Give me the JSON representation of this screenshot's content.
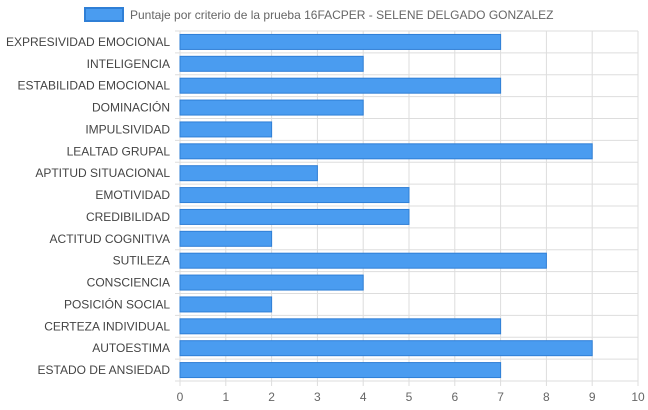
{
  "chart_data": {
    "type": "bar",
    "orientation": "horizontal",
    "legend": {
      "label": "Puntaje por criterio de la prueba 16FACPER - SELENE DELGADO GONZALEZ",
      "placement": "top-center"
    },
    "categories": [
      "EXPRESIVIDAD EMOCIONAL",
      "INTELIGENCIA",
      "ESTABILIDAD EMOCIONAL",
      "DOMINACIÓN",
      "IMPULSIVIDAD",
      "LEALTAD GRUPAL",
      "APTITUD SITUACIONAL",
      "EMOTIVIDAD",
      "CREDIBILIDAD",
      "ACTITUD COGNITIVA",
      "SUTILEZA",
      "CONSCIENCIA",
      "POSICIÓN SOCIAL",
      "CERTEZA INDIVIDUAL",
      "AUTOESTIMA",
      "ESTADO DE ANSIEDAD"
    ],
    "series": [
      {
        "name": "Puntaje por criterio de la prueba 16FACPER - SELENE DELGADO GONZALEZ",
        "values": [
          7,
          4,
          7,
          4,
          2,
          9,
          3,
          5,
          5,
          2,
          8,
          4,
          2,
          7,
          9,
          7
        ]
      }
    ],
    "xlim": [
      0,
      10
    ],
    "xticks": [
      "0",
      "1",
      "2",
      "3",
      "4",
      "5",
      "6",
      "7",
      "8",
      "9",
      "10"
    ],
    "grid": true,
    "colors": {
      "bar_fill": "#4a9cf0",
      "bar_border": "#2f7fd6",
      "grid": "#dddddd"
    }
  }
}
